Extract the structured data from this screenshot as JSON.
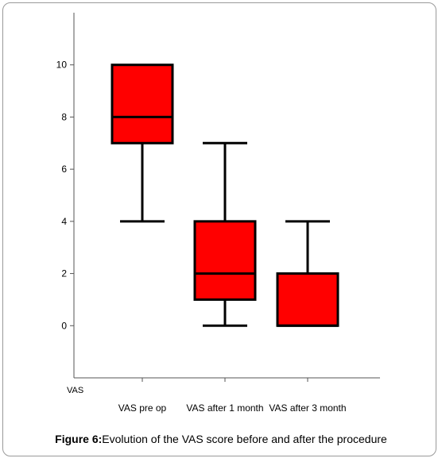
{
  "chart_data": {
    "type": "box",
    "ylabel": "VAS",
    "ylim": [
      -2,
      12
    ],
    "yticks": [
      0,
      2,
      4,
      6,
      8,
      10
    ],
    "categories": [
      "VAS pre op",
      "VAS after 1 month",
      "VAS after 3 month"
    ],
    "boxes": [
      {
        "category": "VAS pre op",
        "whisker_low": 4,
        "q1": 7,
        "median": 8,
        "q3": 10,
        "whisker_high": 10
      },
      {
        "category": "VAS after 1 month",
        "whisker_low": 0,
        "q1": 1,
        "median": 2,
        "q3": 4,
        "whisker_high": 7
      },
      {
        "category": "VAS after 3 month",
        "whisker_low": 0,
        "q1": 0,
        "median": 0,
        "q3": 2,
        "whisker_high": 4
      }
    ],
    "box_color": "#ff0000",
    "grid": false
  },
  "caption": {
    "label": "Figure 6:",
    "text": "Evolution of the VAS score before and after the procedure"
  }
}
